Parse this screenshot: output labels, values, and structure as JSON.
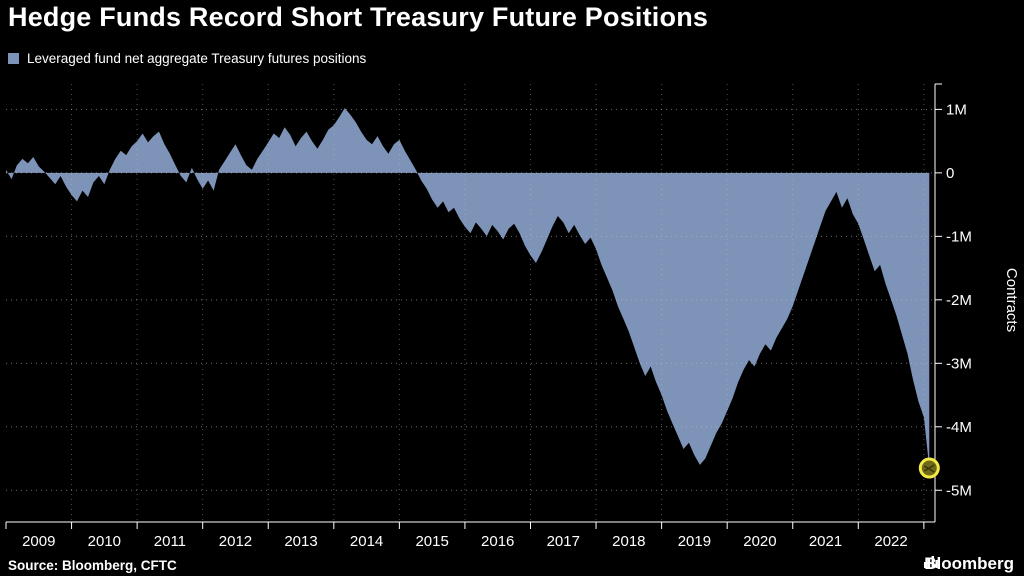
{
  "title": "Hedge Funds Record Short Treasury Future Positions",
  "legend": {
    "label": "Leveraged fund net aggregate Treasury futures positions",
    "swatch_color": "#7e93b8"
  },
  "source": "Source: Bloomberg, CFTC",
  "brand": "Bloomberg",
  "colors": {
    "background": "#000000",
    "area": "#7e93b8",
    "grid": "#c8c8c8",
    "axis": "#ffffff",
    "text": "#ffffff",
    "marker_ring": "#f3ea43",
    "marker_fill": "#6e6a1a"
  },
  "chart_data": {
    "type": "area",
    "title": "Hedge Funds Record Short Treasury Future Positions",
    "series_name": "Leveraged fund net aggregate Treasury futures positions",
    "ylabel": "Contracts",
    "y_unit": "millions of contracts",
    "grid": "dashed",
    "legend_position": "top-left",
    "xlim": [
      2009.0,
      2023.17
    ],
    "ylim_m": [
      -5.5,
      1.4
    ],
    "x_tick_labels": [
      "2009",
      "2010",
      "2011",
      "2012",
      "2013",
      "2014",
      "2015",
      "2016",
      "2017",
      "2018",
      "2019",
      "2020",
      "2021",
      "2022"
    ],
    "y_ticks_m": [
      1,
      0,
      -1,
      -2,
      -3,
      -4,
      -5
    ],
    "y_tick_labels": [
      "1M",
      "0",
      "-1M",
      "-2M",
      "-3M",
      "-4M",
      "-5M"
    ],
    "x_start": 2009.0,
    "x_step_years": 0.083333,
    "values_m": [
      0.05,
      -0.1,
      0.12,
      0.22,
      0.15,
      0.25,
      0.1,
      0.02,
      -0.08,
      -0.18,
      -0.05,
      -0.22,
      -0.35,
      -0.45,
      -0.28,
      -0.38,
      -0.15,
      -0.05,
      -0.18,
      0.05,
      0.22,
      0.35,
      0.28,
      0.42,
      0.5,
      0.62,
      0.48,
      0.58,
      0.65,
      0.45,
      0.3,
      0.12,
      -0.05,
      -0.15,
      0.08,
      -0.1,
      -0.25,
      -0.12,
      -0.28,
      0.05,
      0.18,
      0.32,
      0.45,
      0.28,
      0.12,
      0.05,
      0.22,
      0.35,
      0.48,
      0.62,
      0.55,
      0.72,
      0.6,
      0.42,
      0.55,
      0.65,
      0.5,
      0.38,
      0.52,
      0.68,
      0.75,
      0.88,
      1.02,
      0.92,
      0.8,
      0.65,
      0.52,
      0.45,
      0.58,
      0.42,
      0.3,
      0.45,
      0.52,
      0.35,
      0.2,
      0.05,
      -0.12,
      -0.25,
      -0.42,
      -0.55,
      -0.45,
      -0.62,
      -0.55,
      -0.72,
      -0.85,
      -0.95,
      -0.78,
      -0.88,
      -1.0,
      -0.82,
      -0.92,
      -1.05,
      -0.88,
      -0.8,
      -0.95,
      -1.15,
      -1.3,
      -1.42,
      -1.25,
      -1.05,
      -0.85,
      -0.68,
      -0.78,
      -0.95,
      -0.82,
      -0.98,
      -1.12,
      -1.02,
      -1.2,
      -1.45,
      -1.65,
      -1.85,
      -2.1,
      -2.3,
      -2.5,
      -2.75,
      -3.0,
      -3.2,
      -3.05,
      -3.3,
      -3.5,
      -3.75,
      -3.95,
      -4.15,
      -4.35,
      -4.25,
      -4.45,
      -4.6,
      -4.5,
      -4.3,
      -4.1,
      -3.95,
      -3.75,
      -3.55,
      -3.3,
      -3.1,
      -2.95,
      -3.05,
      -2.85,
      -2.7,
      -2.8,
      -2.6,
      -2.45,
      -2.3,
      -2.1,
      -1.85,
      -1.6,
      -1.35,
      -1.1,
      -0.85,
      -0.6,
      -0.45,
      -0.3,
      -0.55,
      -0.4,
      -0.65,
      -0.8,
      -1.05,
      -1.3,
      -1.55,
      -1.45,
      -1.75,
      -2.0,
      -2.25,
      -2.55,
      -2.85,
      -3.25,
      -3.6,
      -3.85,
      -4.65
    ],
    "marker": {
      "x": 2023.083,
      "y_m": -4.65
    }
  }
}
